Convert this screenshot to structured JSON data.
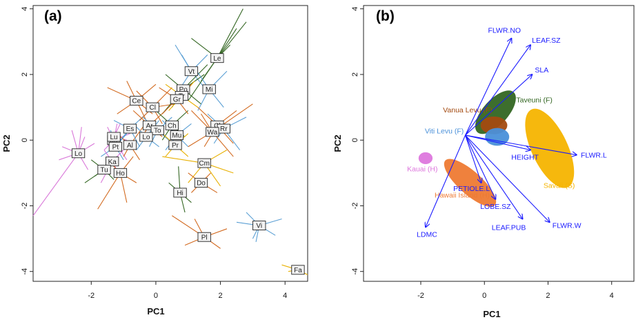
{
  "chart_data": [
    {
      "type": "scatter",
      "panel_label": "(a)",
      "xlabel": "PC1",
      "ylabel": "PC2",
      "xlim": [
        -3.8,
        4.7
      ],
      "ylim": [
        -4.3,
        4.1
      ],
      "xticks": [
        "-2",
        "0",
        "2",
        "4"
      ],
      "yticks": [
        "-4",
        "-2",
        "0",
        "2",
        "4"
      ],
      "xtick_values": [
        -2,
        0,
        2,
        4
      ],
      "ytick_values": [
        -4,
        -2,
        0,
        2,
        4
      ],
      "legend": "none",
      "grid": false,
      "colors": {
        "pink": "#d977d9",
        "orange": "#d2691e",
        "green": "#336622",
        "blue": "#5a9fd4",
        "yellow": "#e8b000"
      },
      "points": [
        {
          "label": "Lo",
          "x": -2.4,
          "y": -0.4,
          "color": "pink",
          "rays": [
            [
              -3.8,
              -2.3
            ],
            [
              -2.3,
              0.4
            ],
            [
              -2.9,
              -0.2
            ],
            [
              -2.1,
              -0.9
            ],
            [
              -2.6,
              0.3
            ],
            [
              -3.0,
              -0.6
            ],
            [
              -1.9,
              -0.1
            ],
            [
              -2.2,
              0.1
            ]
          ]
        },
        {
          "label": "Ju",
          "x": -1.3,
          "y": 0.0,
          "color": "pink",
          "rays": [
            [
              -1.5,
              0.4
            ],
            [
              -0.9,
              -0.6
            ],
            [
              -1.2,
              0.5
            ],
            [
              -1.6,
              -0.3
            ],
            [
              -0.8,
              0.2
            ]
          ]
        },
        {
          "label": "Lu",
          "x": -1.3,
          "y": 0.1,
          "color": "pink",
          "rays": [
            [
              -1.1,
              0.5
            ],
            [
              -1.5,
              -0.2
            ],
            [
              -0.9,
              0.0
            ]
          ]
        },
        {
          "label": "Pt",
          "x": -1.25,
          "y": -0.2,
          "color": "blue",
          "rays": [
            [
              -0.9,
              0.2
            ],
            [
              -1.7,
              -0.5
            ],
            [
              -1.0,
              -0.6
            ],
            [
              -1.4,
              0.3
            ]
          ]
        },
        {
          "label": "Al",
          "x": -0.8,
          "y": -0.15,
          "color": "orange",
          "rays": [
            [
              -0.4,
              0.4
            ],
            [
              -1.2,
              0.2
            ],
            [
              -0.5,
              -0.6
            ],
            [
              -1.0,
              -0.5
            ]
          ]
        },
        {
          "label": "Ka",
          "x": -1.35,
          "y": -0.65,
          "color": "pink",
          "rays": [
            [
              -1.8,
              -1.0
            ],
            [
              -1.0,
              -0.3
            ],
            [
              -1.6,
              -0.3
            ],
            [
              -1.1,
              -1.1
            ],
            [
              -1.7,
              -1.3
            ]
          ]
        },
        {
          "label": "Tu",
          "x": -1.6,
          "y": -0.9,
          "color": "green",
          "rays": [
            [
              -2.2,
              -1.3
            ],
            [
              -1.2,
              -0.5
            ],
            [
              -2.0,
              -0.6
            ],
            [
              -1.3,
              -1.2
            ],
            [
              -1.9,
              -1.1
            ]
          ]
        },
        {
          "label": "Ho",
          "x": -1.1,
          "y": -1.0,
          "color": "orange",
          "rays": [
            [
              -1.8,
              -2.1
            ],
            [
              -0.7,
              -0.5
            ],
            [
              -0.9,
              -1.9
            ],
            [
              -1.4,
              -0.7
            ],
            [
              -0.6,
              -1.3
            ]
          ]
        },
        {
          "label": "Es",
          "x": -0.8,
          "y": 0.35,
          "color": "blue",
          "rays": [
            [
              -0.3,
              0.8
            ],
            [
              -1.3,
              0.6
            ],
            [
              -0.5,
              -0.2
            ],
            [
              -1.1,
              0.0
            ]
          ]
        },
        {
          "label": "Ce",
          "x": -0.6,
          "y": 1.2,
          "color": "orange",
          "rays": [
            [
              -1.5,
              1.6
            ],
            [
              0.0,
              1.7
            ],
            [
              -0.1,
              0.8
            ],
            [
              -1.2,
              0.8
            ],
            [
              -0.9,
              1.8
            ],
            [
              -0.3,
              0.6
            ]
          ]
        },
        {
          "label": "Cl",
          "x": -0.1,
          "y": 1.0,
          "color": "orange",
          "rays": [
            [
              -0.6,
              1.5
            ],
            [
              0.5,
              1.6
            ],
            [
              0.2,
              0.5
            ],
            [
              -0.5,
              0.6
            ],
            [
              0.6,
              1.1
            ]
          ]
        },
        {
          "label": "Ar",
          "x": -0.2,
          "y": 0.45,
          "color": "orange",
          "rays": [
            [
              -0.7,
              0.9
            ],
            [
              0.3,
              0.9
            ],
            [
              -0.5,
              0.0
            ],
            [
              0.2,
              0.1
            ]
          ]
        },
        {
          "label": "To",
          "x": 0.05,
          "y": 0.3,
          "color": "blue",
          "rays": [
            [
              -0.4,
              0.7
            ],
            [
              0.5,
              0.7
            ],
            [
              -0.2,
              -0.2
            ],
            [
              0.4,
              0.0
            ]
          ]
        },
        {
          "label": "Lo",
          "x": -0.3,
          "y": 0.1,
          "color": "blue",
          "rays": [
            [
              -0.7,
              0.5
            ],
            [
              0.1,
              0.6
            ],
            [
              -0.6,
              -0.3
            ],
            [
              0.1,
              -0.2
            ]
          ]
        },
        {
          "label": "Ch",
          "x": 0.5,
          "y": 0.45,
          "color": "green",
          "rays": [
            [
              0.0,
              0.9
            ],
            [
              1.0,
              0.9
            ],
            [
              0.2,
              0.0
            ],
            [
              0.9,
              0.1
            ]
          ]
        },
        {
          "label": "Mu",
          "x": 0.65,
          "y": 0.15,
          "color": "blue",
          "rays": [
            [
              0.2,
              0.6
            ],
            [
              1.1,
              0.5
            ],
            [
              0.3,
              -0.3
            ],
            [
              1.0,
              -0.2
            ]
          ]
        },
        {
          "label": "Pr",
          "x": 0.6,
          "y": -0.15,
          "color": "yellow",
          "rays": [
            [
              0.2,
              0.2
            ],
            [
              1.0,
              0.2
            ],
            [
              0.3,
              -0.5
            ],
            [
              1.0,
              -0.5
            ]
          ]
        },
        {
          "label": "Vt",
          "x": 1.1,
          "y": 2.1,
          "color": "blue",
          "rays": [
            [
              0.6,
              2.9
            ],
            [
              1.6,
              2.6
            ],
            [
              0.7,
              1.5
            ],
            [
              1.5,
              1.6
            ],
            [
              0.8,
              2.6
            ]
          ]
        },
        {
          "label": "Le",
          "x": 1.9,
          "y": 2.5,
          "color": "green",
          "rays": [
            [
              2.7,
              4.0
            ],
            [
              2.8,
              3.6
            ],
            [
              1.0,
              1.2
            ],
            [
              2.5,
              3.4
            ],
            [
              1.4,
              1.8
            ],
            [
              2.3,
              2.9
            ],
            [
              1.1,
              3.1
            ]
          ]
        },
        {
          "label": "Po",
          "x": 0.85,
          "y": 1.55,
          "color": "green",
          "rays": [
            [
              0.2,
              0.8
            ],
            [
              1.6,
              2.3
            ],
            [
              0.3,
              2.0
            ],
            [
              1.4,
              1.1
            ],
            [
              0.5,
              1.0
            ],
            [
              1.5,
              2.0
            ]
          ]
        },
        {
          "label": "Mi",
          "x": 1.65,
          "y": 1.55,
          "color": "blue",
          "rays": [
            [
              1.2,
              2.2
            ],
            [
              2.2,
              2.1
            ],
            [
              1.3,
              0.9
            ],
            [
              2.1,
              1.0
            ]
          ]
        },
        {
          "label": "Tr",
          "x": 0.8,
          "y": 1.35,
          "color": "yellow",
          "rays": [
            [
              0.3,
              1.7
            ],
            [
              1.2,
              1.8
            ],
            [
              0.4,
              0.9
            ],
            [
              1.3,
              1.0
            ]
          ]
        },
        {
          "label": "Gr",
          "x": 0.65,
          "y": 1.25,
          "color": "orange",
          "rays": [
            [
              0.1,
              1.6
            ],
            [
              1.1,
              1.7
            ],
            [
              0.2,
              0.8
            ],
            [
              1.0,
              0.8
            ]
          ]
        },
        {
          "label": "Cl",
          "x": 1.9,
          "y": 0.45,
          "color": "orange",
          "rays": [
            [
              2.5,
              0.9
            ],
            [
              1.3,
              1.0
            ],
            [
              2.4,
              -0.1
            ],
            [
              1.5,
              -0.2
            ]
          ]
        },
        {
          "label": "Rr",
          "x": 2.1,
          "y": 0.35,
          "color": "blue",
          "rays": [
            [
              2.8,
              0.7
            ],
            [
              1.6,
              0.8
            ],
            [
              2.6,
              -0.3
            ],
            [
              1.8,
              -0.1
            ]
          ]
        },
        {
          "label": "Wa",
          "x": 1.75,
          "y": 0.25,
          "color": "orange",
          "rays": [
            [
              3.0,
              1.1
            ],
            [
              1.1,
              0.9
            ],
            [
              2.4,
              -0.5
            ],
            [
              1.0,
              -0.2
            ],
            [
              1.4,
              0.8
            ]
          ]
        },
        {
          "label": "Cm",
          "x": 1.5,
          "y": -0.7,
          "color": "yellow",
          "rays": [
            [
              0.2,
              -0.5
            ],
            [
              2.4,
              -1.0
            ],
            [
              1.0,
              -1.3
            ],
            [
              2.2,
              -0.3
            ],
            [
              2.0,
              -1.4
            ]
          ]
        },
        {
          "label": "Do",
          "x": 1.4,
          "y": -1.3,
          "color": "orange",
          "rays": [
            [
              1.0,
              -1.0
            ],
            [
              1.9,
              -1.6
            ],
            [
              1.1,
              -1.6
            ],
            [
              1.7,
              -1.0
            ]
          ]
        },
        {
          "label": "Hi",
          "x": 0.75,
          "y": -1.6,
          "color": "green",
          "rays": [
            [
              0.9,
              -2.2
            ],
            [
              0.7,
              -0.8
            ],
            [
              0.4,
              -1.3
            ],
            [
              1.1,
              -1.9
            ]
          ]
        },
        {
          "label": "Pl",
          "x": 1.5,
          "y": -2.95,
          "color": "orange",
          "rays": [
            [
              0.5,
              -2.3
            ],
            [
              2.2,
              -2.7
            ],
            [
              0.9,
              -3.2
            ],
            [
              2.0,
              -3.3
            ],
            [
              1.2,
              -2.4
            ]
          ]
        },
        {
          "label": "Vi",
          "x": 3.2,
          "y": -2.6,
          "color": "blue",
          "rays": [
            [
              2.5,
              -2.5
            ],
            [
              3.9,
              -2.4
            ],
            [
              3.0,
              -3.0
            ],
            [
              3.7,
              -2.9
            ],
            [
              2.8,
              -2.2
            ],
            [
              3.1,
              -3.1
            ]
          ]
        },
        {
          "label": "Fa",
          "x": 4.4,
          "y": -3.95,
          "color": "yellow",
          "rays": [
            [
              3.9,
              -3.8
            ],
            [
              4.7,
              -4.1
            ],
            [
              4.1,
              -4.0
            ]
          ]
        }
      ]
    },
    {
      "type": "biplot",
      "panel_label": "(b)",
      "xlabel": "PC1",
      "ylabel": "PC2",
      "xlim": [
        -3.8,
        4.7
      ],
      "ylim": [
        -4.3,
        4.1
      ],
      "xticks": [
        "-2",
        "0",
        "2",
        "4"
      ],
      "yticks": [
        "-4",
        "-2",
        "0",
        "2",
        "4"
      ],
      "xtick_values": [
        -2,
        0,
        2,
        4
      ],
      "ytick_values": [
        -4,
        -2,
        0,
        2,
        4
      ],
      "legend": "none",
      "grid": false,
      "arrow_origin": [
        -0.6,
        0.15
      ],
      "arrow_color": "#1a1aff",
      "vectors": [
        {
          "label": "FLWR.NO",
          "x": 0.85,
          "y": 3.1
        },
        {
          "label": "LEAF.SZ",
          "x": 1.45,
          "y": 2.9
        },
        {
          "label": "SLA",
          "x": 1.5,
          "y": 2.0
        },
        {
          "label": "FLWR.L",
          "x": 2.9,
          "y": -0.45
        },
        {
          "label": "HEIGHT",
          "x": 1.45,
          "y": -0.3
        },
        {
          "label": "PETIOLE.L",
          "x": -0.1,
          "y": -1.3
        },
        {
          "label": "LOBE.SZ",
          "x": 0.35,
          "y": -1.8
        },
        {
          "label": "LEAF.PUB",
          "x": 1.2,
          "y": -2.4
        },
        {
          "label": "FLWR.W",
          "x": 2.05,
          "y": -2.5
        },
        {
          "label": "LDMC",
          "x": -1.85,
          "y": -2.65
        }
      ],
      "groups": [
        {
          "label": "Taveuni (F)",
          "cx": 0.35,
          "cy": 0.85,
          "rx": 0.85,
          "ry": 0.38,
          "angle": 48,
          "color": "#336622"
        },
        {
          "label": "Vanua Levu (F)",
          "cx": 0.3,
          "cy": 0.45,
          "rx": 0.42,
          "ry": 0.27,
          "angle": 0,
          "color": "#a34a10"
        },
        {
          "label": "Viti Levu (F)",
          "cx": 0.4,
          "cy": 0.1,
          "rx": 0.38,
          "ry": 0.27,
          "angle": 0,
          "color": "#4a90d9"
        },
        {
          "label": "Savaii (S)",
          "cx": 2.05,
          "cy": -0.25,
          "rx": 1.35,
          "ry": 0.55,
          "angle": -65,
          "color": "#f5b400"
        },
        {
          "label": "Kauai (H)",
          "cx": -1.85,
          "cy": -0.55,
          "rx": 0.22,
          "ry": 0.18,
          "angle": 0,
          "color": "#dd77dd"
        },
        {
          "label": "Hawaii Island (H)",
          "cx": -0.45,
          "cy": -1.3,
          "rx": 1.05,
          "ry": 0.35,
          "angle": -42,
          "color": "#ee7a33"
        }
      ]
    }
  ]
}
